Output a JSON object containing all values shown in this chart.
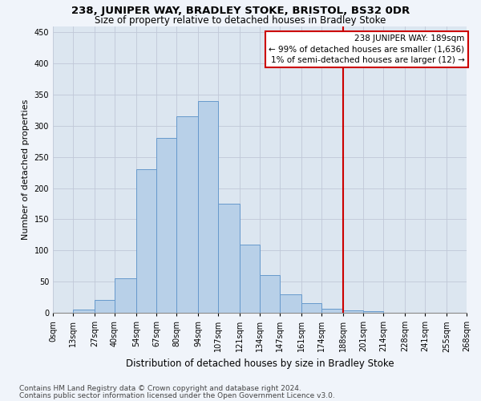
{
  "title": "238, JUNIPER WAY, BRADLEY STOKE, BRISTOL, BS32 0DR",
  "subtitle": "Size of property relative to detached houses in Bradley Stoke",
  "xlabel": "Distribution of detached houses by size in Bradley Stoke",
  "ylabel": "Number of detached properties",
  "footnote1": "Contains HM Land Registry data © Crown copyright and database right 2024.",
  "footnote2": "Contains public sector information licensed under the Open Government Licence v3.0.",
  "bin_labels": [
    "0sqm",
    "13sqm",
    "27sqm",
    "40sqm",
    "54sqm",
    "67sqm",
    "80sqm",
    "94sqm",
    "107sqm",
    "121sqm",
    "134sqm",
    "147sqm",
    "161sqm",
    "174sqm",
    "188sqm",
    "201sqm",
    "214sqm",
    "228sqm",
    "241sqm",
    "255sqm",
    "268sqm"
  ],
  "bar_values": [
    0,
    5,
    20,
    55,
    230,
    280,
    315,
    340,
    175,
    110,
    60,
    30,
    15,
    7,
    4,
    2,
    0,
    0,
    0,
    0
  ],
  "bin_edges": [
    0,
    13,
    27,
    40,
    54,
    67,
    80,
    94,
    107,
    121,
    134,
    147,
    161,
    174,
    188,
    201,
    214,
    228,
    241,
    255,
    268
  ],
  "bar_color": "#b8d0e8",
  "bar_edge_color": "#6699cc",
  "vline_x": 188,
  "vline_color": "#cc0000",
  "annotation_text": "238 JUNIPER WAY: 189sqm\n← 99% of detached houses are smaller (1,636)\n1% of semi-detached houses are larger (12) →",
  "annotation_box_color": "#cc0000",
  "ylim": [
    0,
    460
  ],
  "yticks": [
    0,
    50,
    100,
    150,
    200,
    250,
    300,
    350,
    400,
    450
  ],
  "bg_color": "#f0f4fa",
  "plot_bg_color": "#dce6f0",
  "grid_color": "#c0c8d8",
  "title_fontsize": 9.5,
  "subtitle_fontsize": 8.5,
  "axis_label_fontsize": 8,
  "tick_fontsize": 7,
  "footnote_fontsize": 6.5,
  "annotation_fontsize": 7.5
}
